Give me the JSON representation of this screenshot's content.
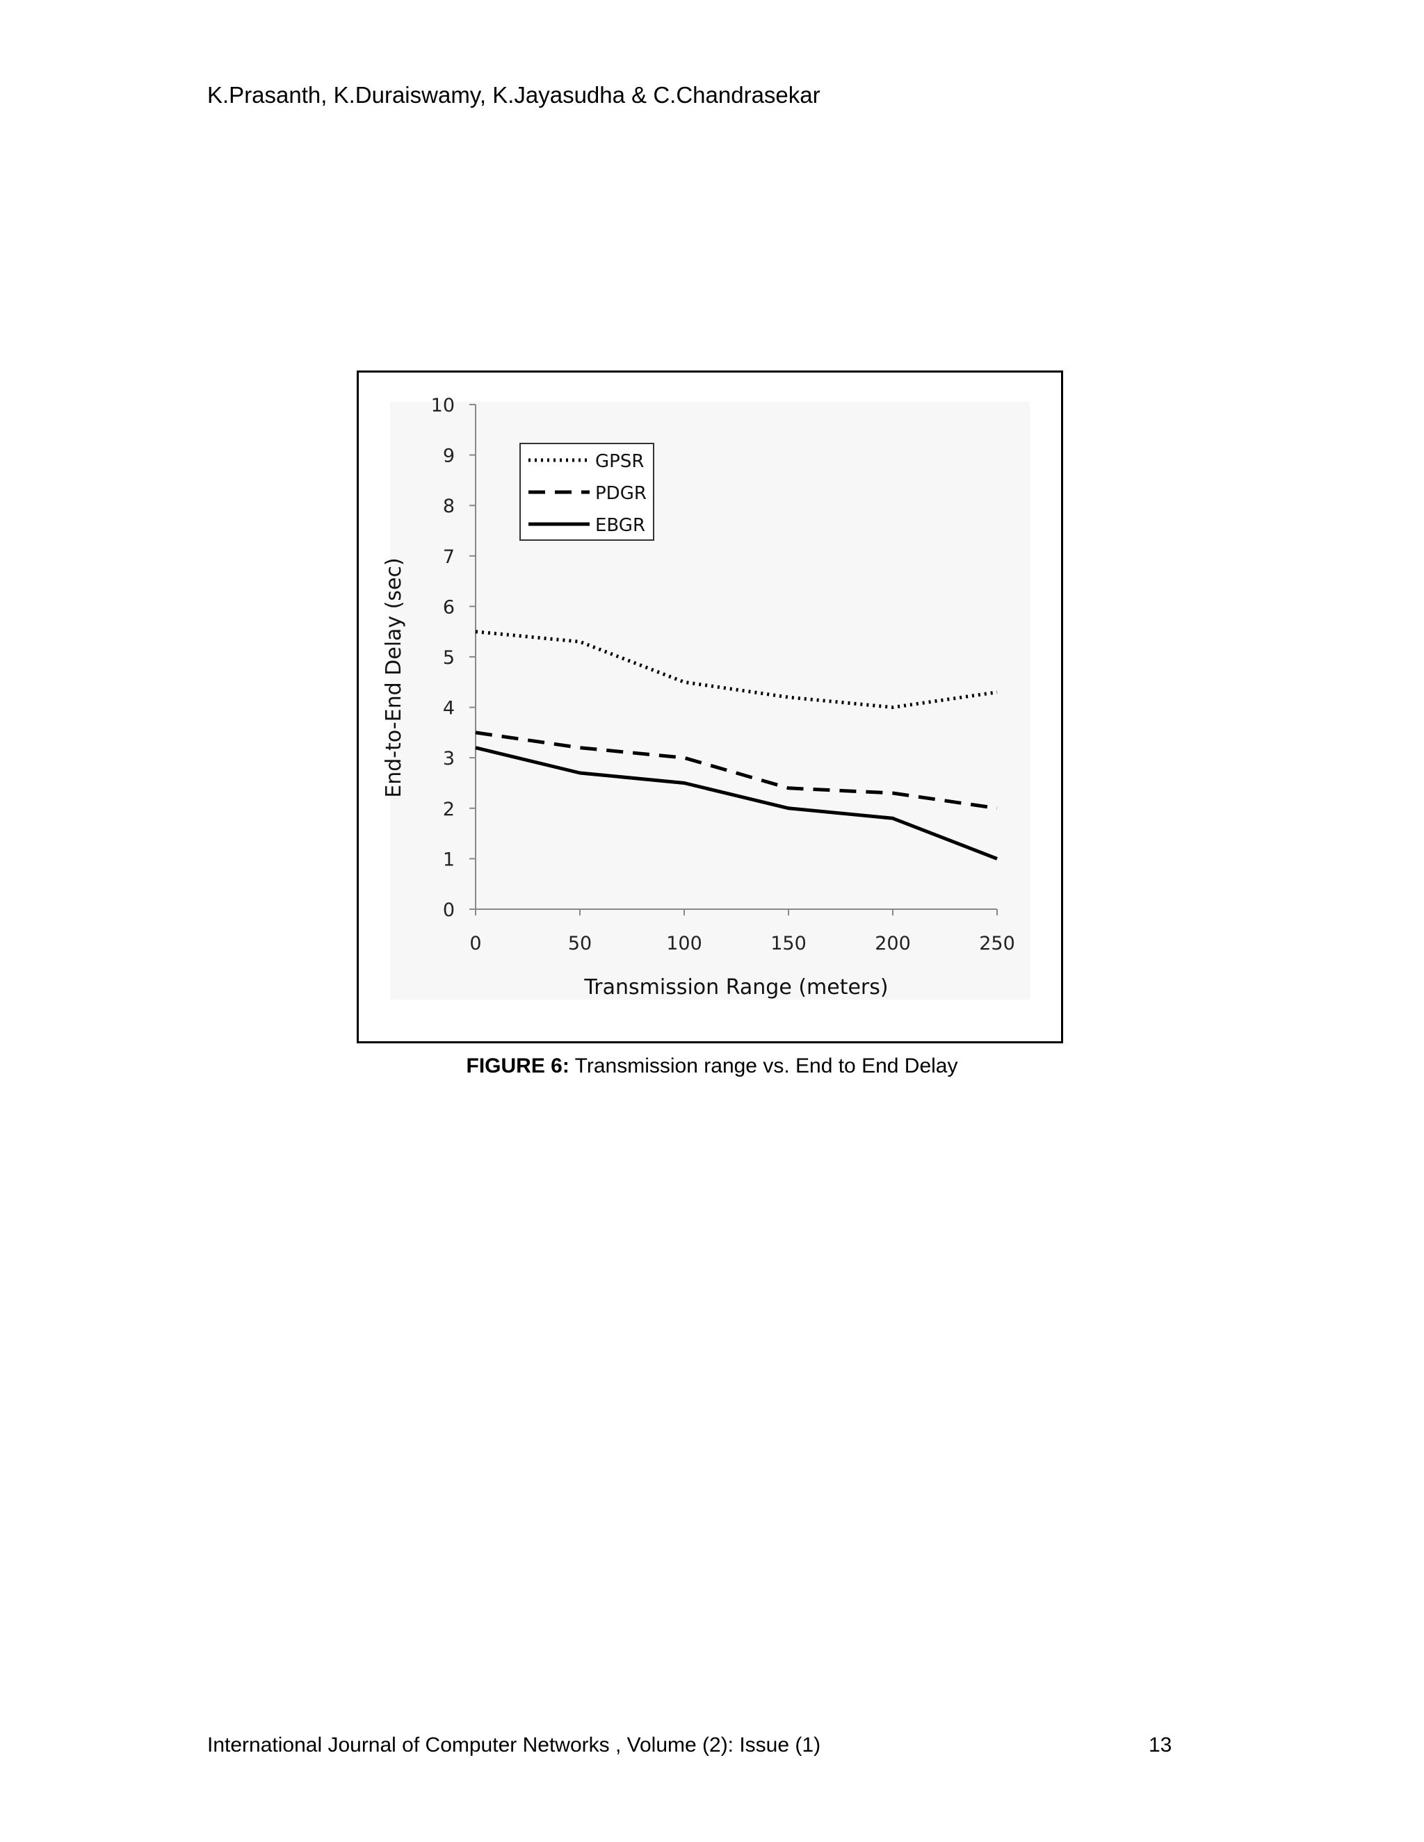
{
  "header": {
    "authors": "K.Prasanth, K.Duraiswamy, K.Jayasudha & C.Chandrasekar"
  },
  "caption": {
    "label": "FIGURE 6:",
    "text": " Transmission range vs. End to End Delay"
  },
  "footer": {
    "journal": "International Journal of Computer Networks , Volume (2): Issue (1)",
    "page_number": "13"
  },
  "chart_data": {
    "type": "line",
    "title": "",
    "xlabel": "Transmission Range (meters)",
    "ylabel": "End-to-End Delay (sec)",
    "x": [
      0,
      50,
      100,
      150,
      200,
      250
    ],
    "xlim": [
      0,
      250
    ],
    "ylim": [
      0,
      10
    ],
    "xticks": [
      0,
      50,
      100,
      150,
      200,
      250
    ],
    "yticks": [
      0,
      1,
      2,
      3,
      4,
      5,
      6,
      7,
      8,
      9,
      10
    ],
    "grid": false,
    "legend_position": "top-left",
    "series": [
      {
        "name": "GPSR",
        "style": "dotted",
        "color": "#000000",
        "values": [
          5.5,
          5.3,
          4.5,
          4.2,
          4.0,
          4.3
        ]
      },
      {
        "name": "PDGR",
        "style": "dashed",
        "color": "#000000",
        "values": [
          3.5,
          3.2,
          3.0,
          2.4,
          2.3,
          2.0
        ]
      },
      {
        "name": "EBGR",
        "style": "solid",
        "color": "#000000",
        "values": [
          3.2,
          2.7,
          2.5,
          2.0,
          1.8,
          1.0
        ]
      }
    ]
  }
}
